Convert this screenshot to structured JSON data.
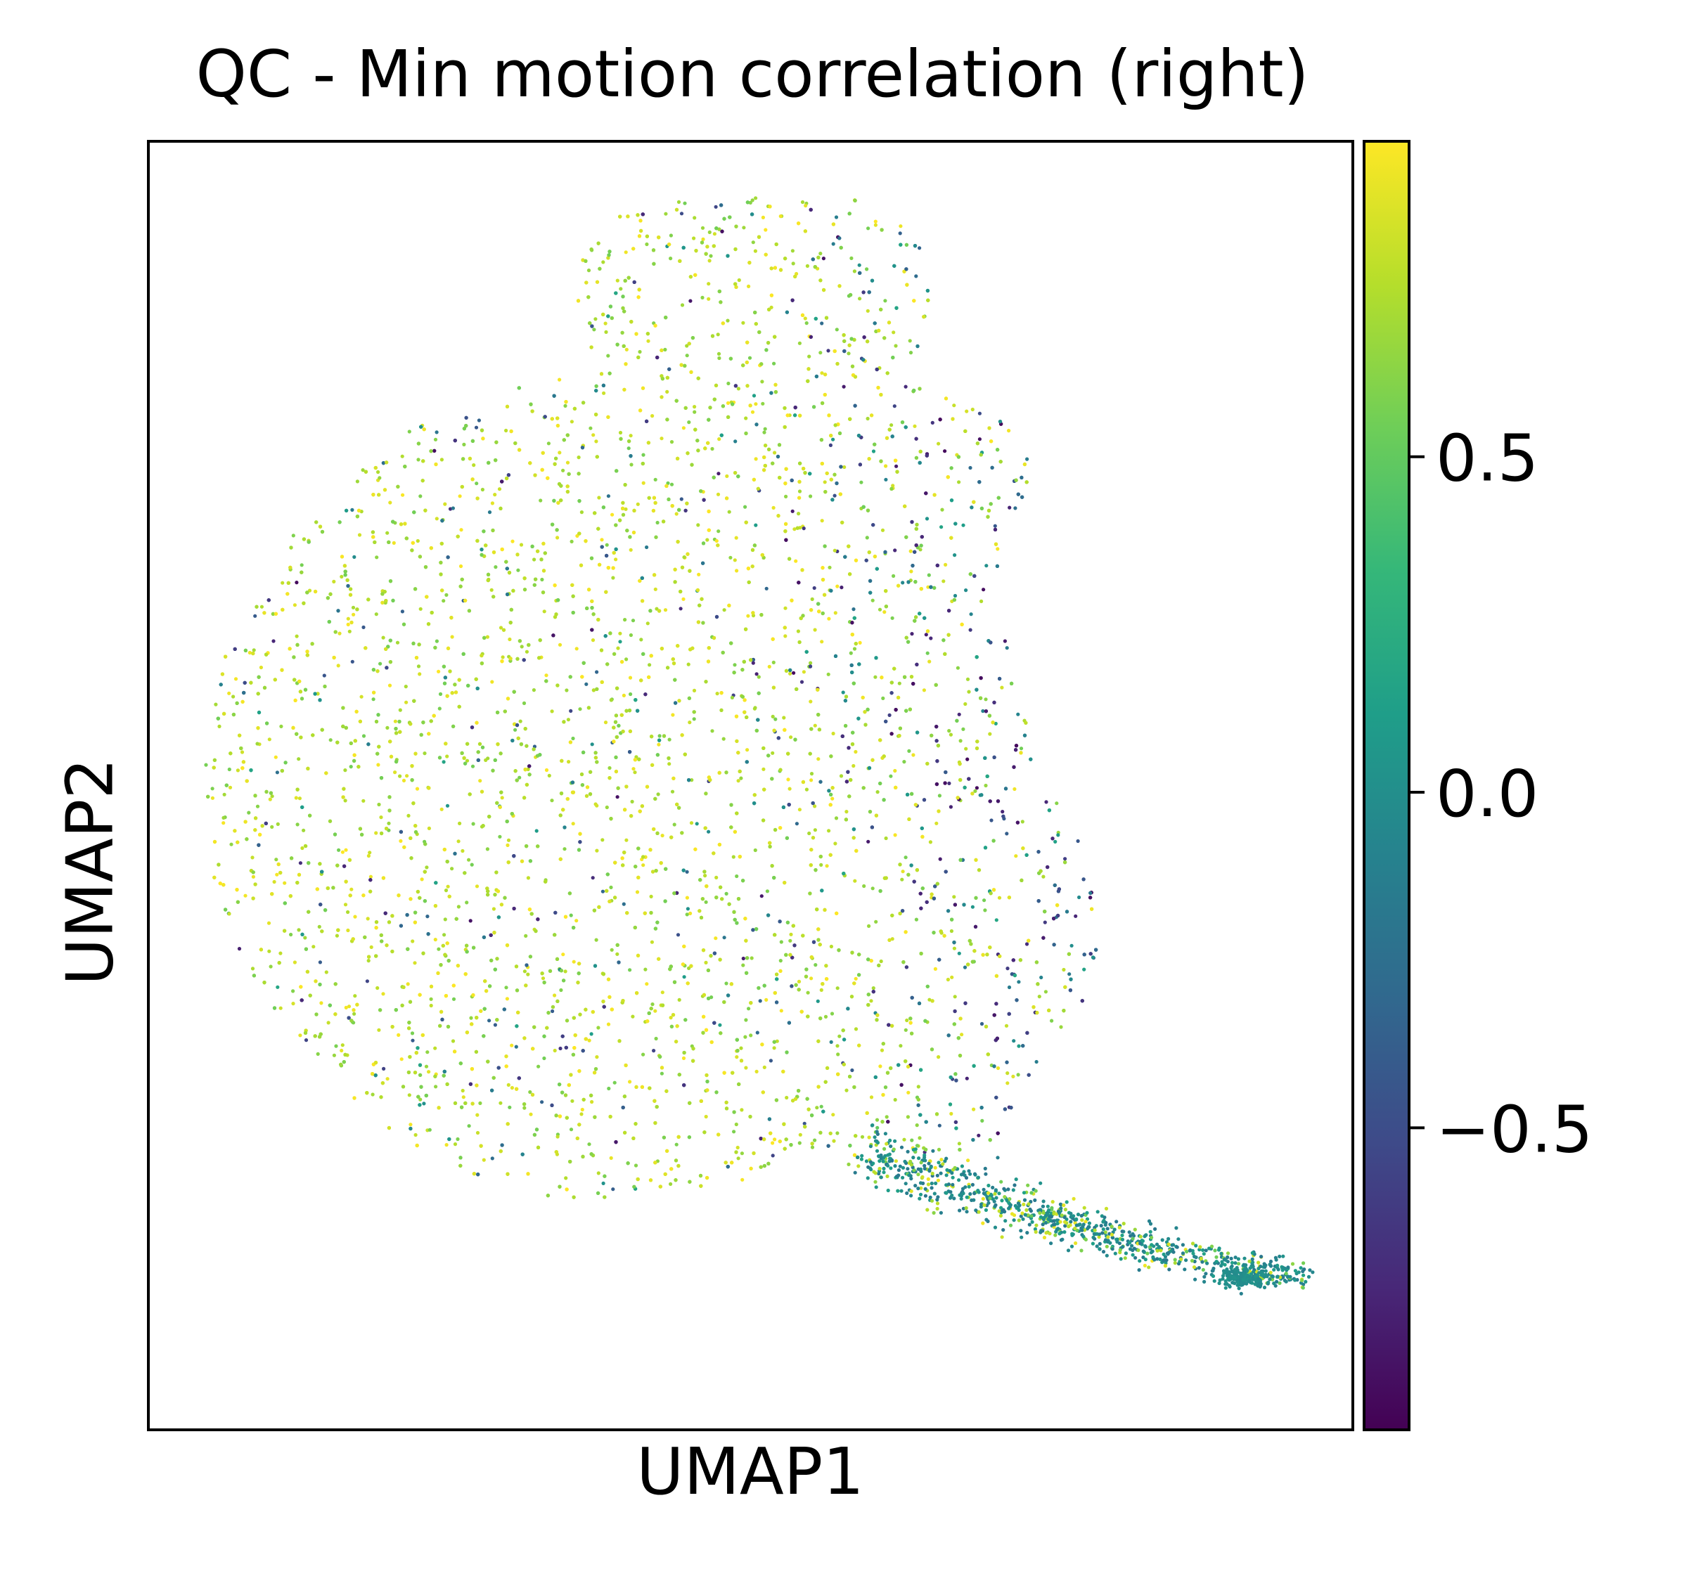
{
  "chart_data": {
    "type": "scatter",
    "title": "QC - Min motion correlation (right)",
    "xlabel": "UMAP1",
    "ylabel": "UMAP2",
    "grid": false,
    "colorbar": {
      "colormap": "viridis",
      "range": [
        -0.95,
        0.97
      ],
      "ticks": [
        0.5,
        0.0,
        -0.5
      ],
      "tick_labels": [
        "0.5",
        "0.0",
        "−0.5"
      ],
      "placement": "right"
    },
    "description_of_points": "dense UMAP embedding of cells; majority with high values (yellow, ~0.7-0.95) in a large round cluster, with lower values (teal/purple, ~-0.9 to 0.2) concentrated on the right edge and a tail extending to the lower right",
    "x": [
      -3.0,
      -2.4,
      -1.8,
      -1.2,
      -0.6,
      0.0,
      0.6,
      1.2,
      1.8,
      2.4,
      3.0,
      3.4,
      3.8,
      4.2,
      4.6,
      5.0
    ],
    "y": [
      0.5,
      1.8,
      -1.2,
      2.6,
      -2.2,
      0.1,
      3.0,
      -3.0,
      1.1,
      -0.8,
      1.7,
      -2.5,
      -3.2,
      -3.6,
      -3.7,
      -3.8
    ],
    "values": [
      0.9,
      0.85,
      0.92,
      0.88,
      0.8,
      0.75,
      0.9,
      0.7,
      0.2,
      0.1,
      -0.6,
      0.0,
      -0.1,
      -0.05,
      -0.1,
      -0.05
    ]
  },
  "colors": {
    "viridis": [
      "#440154",
      "#482878",
      "#3e4a89",
      "#31688e",
      "#26828e",
      "#1f9e89",
      "#35b779",
      "#6ece58",
      "#b5de2b",
      "#fde725"
    ]
  }
}
